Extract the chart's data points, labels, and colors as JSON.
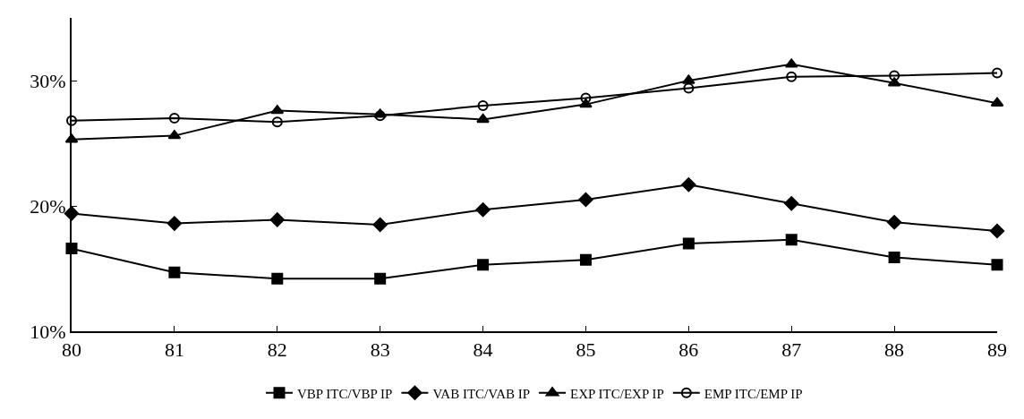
{
  "chart_data": {
    "type": "line",
    "categories": [
      "80",
      "81",
      "82",
      "83",
      "84",
      "85",
      "86",
      "87",
      "88",
      "89"
    ],
    "series": [
      {
        "name": "VBP ITC/VBP IP",
        "color": "#000000",
        "marker": "square",
        "values": [
          16.6,
          14.7,
          14.2,
          14.2,
          15.3,
          15.7,
          17.0,
          17.3,
          15.9,
          15.3
        ]
      },
      {
        "name": "VAB ITC/VAB IP",
        "color": "#000000",
        "marker": "diamond",
        "values": [
          19.4,
          18.6,
          18.9,
          18.5,
          19.7,
          20.5,
          21.7,
          20.2,
          18.7,
          18.0
        ]
      },
      {
        "name": "EXP ITC/EXP IP",
        "color": "#000000",
        "marker": "triangle",
        "values": [
          25.3,
          25.6,
          27.6,
          27.3,
          26.9,
          28.1,
          30.0,
          31.3,
          29.8,
          28.2
        ]
      },
      {
        "name": "EMP ITC/EMP IP",
        "color": "#000000",
        "marker": "circle",
        "values": [
          26.8,
          27.0,
          26.7,
          27.2,
          28.0,
          28.6,
          29.4,
          30.3,
          30.4,
          30.6
        ]
      }
    ],
    "ylim": [
      10,
      35
    ],
    "yticks": [
      {
        "value": 10,
        "label": "10%"
      },
      {
        "value": 20,
        "label": "20%"
      },
      {
        "value": 30,
        "label": "30%"
      }
    ],
    "legend": "bottom",
    "line_style": "solid"
  }
}
